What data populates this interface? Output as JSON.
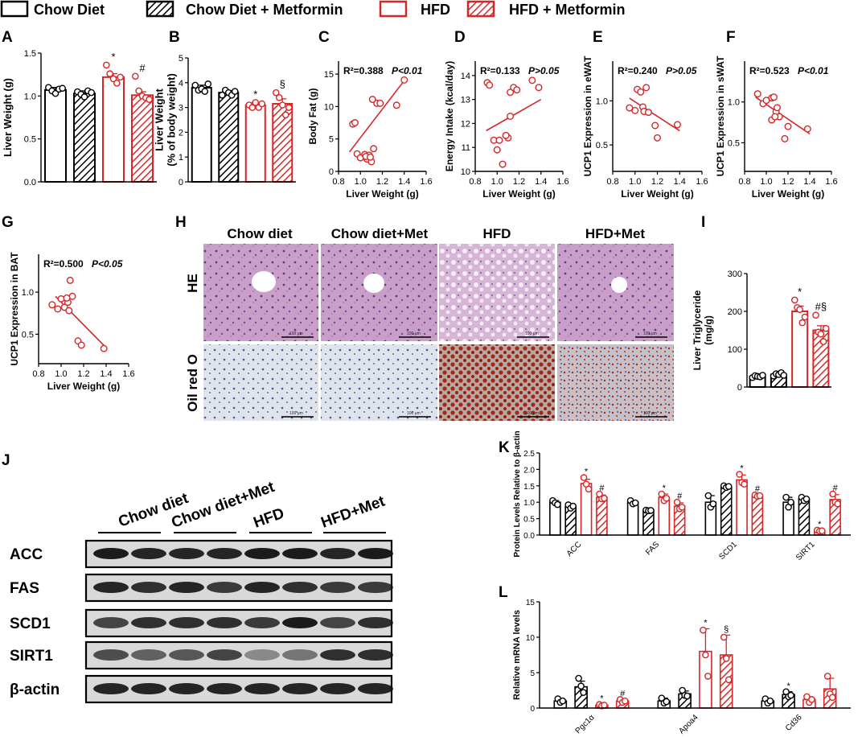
{
  "legend": [
    {
      "label": "Chow Diet",
      "color": "#000000",
      "hatched": false
    },
    {
      "label": "Chow Diet + Metformin",
      "color": "#000000",
      "hatched": true
    },
    {
      "label": "HFD",
      "color": "#d62728",
      "hatched": false
    },
    {
      "label": "HFD + Metformin",
      "color": "#d62728",
      "hatched": true
    }
  ],
  "colors": {
    "black": "#000000",
    "red": "#d62728"
  },
  "chart_data": [
    {
      "panel": "A",
      "type": "bar",
      "categories": [
        "Chow Diet",
        "Chow Diet + Metformin",
        "HFD",
        "HFD + Metformin"
      ],
      "values": [
        1.07,
        1.03,
        1.22,
        1.01
      ],
      "errors": [
        0.03,
        0.03,
        0.04,
        0.04
      ],
      "points": [
        [
          1.1,
          1.06,
          1.03,
          1.08,
          1.09
        ],
        [
          1.05,
          1.02,
          0.99,
          1.06,
          1.04
        ],
        [
          1.36,
          1.26,
          1.2,
          1.15,
          1.22
        ],
        [
          1.23,
          1.06,
          1.0,
          0.98,
          0.96
        ]
      ],
      "sig": [
        "",
        "",
        "*",
        "#"
      ],
      "ylabel": "Liver Weight (g)",
      "ylim": [
        0,
        1.5
      ],
      "yticks": [
        "0.0",
        "0.5",
        "1.0",
        "1.5"
      ],
      "ytickvals": [
        0,
        0.5,
        1.0,
        1.5
      ]
    },
    {
      "panel": "B",
      "type": "bar",
      "categories": [
        "Chow Diet",
        "Chow Diet + Metformin",
        "HFD",
        "HFD + Metformin"
      ],
      "values": [
        3.8,
        3.6,
        3.1,
        3.15
      ],
      "errors": [
        0.1,
        0.08,
        0.1,
        0.2
      ],
      "points": [
        [
          3.9,
          3.7,
          3.75,
          3.65,
          3.95
        ],
        [
          3.5,
          3.7,
          3.6,
          3.5,
          3.65
        ],
        [
          3.1,
          3.0,
          3.2,
          3.0,
          3.15
        ],
        [
          3.6,
          3.4,
          3.1,
          2.7,
          3.0
        ]
      ],
      "sig": [
        "",
        "",
        "*",
        "§"
      ],
      "ylabel": "Liver Weight (% of body weight)",
      "ylabel_lines": [
        "Liver Weight",
        "(% of body weight)"
      ],
      "ylim": [
        0,
        5
      ],
      "yticks": [
        "0",
        "1",
        "2",
        "3",
        "4",
        "5"
      ],
      "ytickvals": [
        0,
        1,
        2,
        3,
        4,
        5
      ]
    },
    {
      "panel": "C",
      "type": "scatter",
      "x": [
        0.93,
        0.95,
        0.97,
        1.0,
        1.04,
        1.06,
        1.08,
        1.1,
        1.12,
        1.15,
        1.18,
        1.05,
        1.09,
        1.11,
        1.33,
        1.4
      ],
      "y": [
        7.3,
        7.5,
        2.7,
        2.1,
        2.6,
        1.9,
        2.5,
        1.5,
        3.5,
        10.5,
        10.5,
        2.3,
        2.2,
        11.1,
        10.2,
        14.1
      ],
      "fit": [
        [
          0.9,
          3.0
        ],
        [
          1.4,
          14.0
        ]
      ],
      "annotation": "R²=0.388",
      "pvalue": "P<0.01",
      "xlabel": "Liver Weight (g)",
      "ylabel": "Body Fat (g)",
      "xlim": [
        0.8,
        1.6
      ],
      "ylim": [
        0,
        17
      ],
      "xticks": [
        "0.8",
        "1.0",
        "1.2",
        "1.4",
        "1.6"
      ],
      "xtickvals": [
        0.8,
        1.0,
        1.2,
        1.4,
        1.6
      ],
      "yticks": [
        "0",
        "5",
        "10",
        "15"
      ],
      "ytickvals": [
        0,
        5,
        10,
        15
      ]
    },
    {
      "panel": "D",
      "type": "scatter",
      "x": [
        0.91,
        0.93,
        0.97,
        1.0,
        1.02,
        1.05,
        1.08,
        1.1,
        1.12,
        1.15,
        1.18,
        1.08,
        1.12,
        1.32,
        1.38
      ],
      "y": [
        13.7,
        13.6,
        11.3,
        10.9,
        11.3,
        10.3,
        11.5,
        11.4,
        13.3,
        13.5,
        13.4,
        11.5,
        12.3,
        13.8,
        13.5
      ],
      "fit": [
        [
          0.9,
          11.7
        ],
        [
          1.4,
          13.0
        ]
      ],
      "annotation": "R²=0.133",
      "pvalue": "P>0.05",
      "xlabel": "Liver Weight (g)",
      "ylabel": "Energy Intake (kcal/day)",
      "xlim": [
        0.8,
        1.6
      ],
      "ylim": [
        10,
        14.6
      ],
      "xticks": [
        "0.8",
        "1.0",
        "1.2",
        "1.4",
        "1.6"
      ],
      "xtickvals": [
        0.8,
        1.0,
        1.2,
        1.4,
        1.6
      ],
      "yticks": [
        "10",
        "11",
        "12",
        "13",
        "14"
      ],
      "ytickvals": [
        10,
        11,
        12,
        13,
        14
      ]
    },
    {
      "panel": "E",
      "type": "scatter",
      "x": [
        0.95,
        1.0,
        1.02,
        1.05,
        1.07,
        1.1,
        1.08,
        1.12,
        1.18,
        1.2,
        1.38
      ],
      "y": [
        0.92,
        0.89,
        1.13,
        1.1,
        0.93,
        1.15,
        0.88,
        0.87,
        0.72,
        0.58,
        0.73
      ],
      "fit": [
        [
          0.95,
          1.03
        ],
        [
          1.4,
          0.66
        ]
      ],
      "annotation": "R²=0.240",
      "pvalue": "P>0.05",
      "xlabel": "Liver Weight (g)",
      "ylabel": "UCP1 Expression in eWAT",
      "xlim": [
        0.8,
        1.6
      ],
      "ylim": [
        0.2,
        1.45
      ],
      "xticks": [
        "0.8",
        "1.0",
        "1.2",
        "1.4",
        "1.6"
      ],
      "xtickvals": [
        0.8,
        1.0,
        1.2,
        1.4,
        1.6
      ],
      "yticks": [
        "0.5",
        "1.0"
      ],
      "ytickvals": [
        0.5,
        1.0
      ]
    },
    {
      "panel": "F",
      "type": "scatter",
      "x": [
        0.92,
        0.97,
        1.0,
        1.05,
        1.07,
        1.09,
        1.1,
        1.12,
        1.05,
        1.08,
        1.2,
        1.17,
        1.38
      ],
      "y": [
        1.1,
        0.98,
        1.02,
        1.05,
        1.06,
        0.88,
        0.93,
        0.82,
        0.78,
        0.82,
        0.7,
        0.55,
        0.67
      ],
      "fit": [
        [
          0.9,
          1.06
        ],
        [
          1.4,
          0.61
        ]
      ],
      "annotation": "R²=0.523",
      "pvalue": "P<0.01",
      "xlabel": "Liver Weight (g)",
      "ylabel": "UCP1 Expression in sWAT",
      "xlim": [
        0.8,
        1.6
      ],
      "ylim": [
        0.15,
        1.5
      ],
      "xticks": [
        "0.8",
        "1.0",
        "1.2",
        "1.4",
        "1.6"
      ],
      "xtickvals": [
        0.8,
        1.0,
        1.2,
        1.4,
        1.6
      ],
      "yticks": [
        "0.5",
        "1.0"
      ],
      "ytickvals": [
        0.5,
        1.0
      ]
    },
    {
      "panel": "G",
      "type": "scatter",
      "x": [
        0.92,
        0.97,
        1.0,
        1.03,
        1.06,
        1.08,
        1.1,
        1.05,
        1.07,
        1.15,
        1.18,
        1.38
      ],
      "y": [
        0.85,
        0.8,
        0.92,
        0.82,
        0.88,
        1.14,
        0.95,
        0.93,
        0.78,
        0.42,
        0.37,
        0.33
      ],
      "fit": [
        [
          0.95,
          0.95
        ],
        [
          1.4,
          0.34
        ]
      ],
      "annotation": "R²=0.500",
      "pvalue": "P<0.05",
      "xlabel": "Liver Weight (g)",
      "ylabel": "UCP1 Expression in BAT",
      "xlim": [
        0.8,
        1.6
      ],
      "ylim": [
        0.15,
        1.45
      ],
      "xticks": [
        "0.8",
        "1.0",
        "1.2",
        "1.4",
        "1.6"
      ],
      "xtickvals": [
        0.8,
        1.0,
        1.2,
        1.4,
        1.6
      ],
      "yticks": [
        "0.5",
        "1.0"
      ],
      "ytickvals": [
        0.5,
        1.0
      ]
    },
    {
      "panel": "I",
      "type": "bar",
      "categories": [
        "Chow Diet",
        "Chow Diet + Metformin",
        "HFD",
        "HFD + Metformin"
      ],
      "values": [
        28,
        33,
        200,
        150
      ],
      "errors": [
        3,
        4,
        14,
        12
      ],
      "points": [
        [
          25,
          30,
          28,
          27,
          31
        ],
        [
          29,
          35,
          33,
          38,
          31
        ],
        [
          230,
          210,
          205,
          170,
          185
        ],
        [
          190,
          145,
          140,
          120,
          155
        ]
      ],
      "sig": [
        "",
        "",
        "*",
        "#§"
      ],
      "ylabel": "Liver Triglyceride (mg/g)",
      "ylabel_lines": [
        "Liver Triglyceride",
        "(mg/g)"
      ],
      "ylim": [
        0,
        300
      ],
      "yticks": [
        "0",
        "100",
        "200",
        "300"
      ],
      "ytickvals": [
        0,
        100,
        200,
        300
      ]
    },
    {
      "panel": "K",
      "type": "bar",
      "categories": [
        "ACC",
        "FAS",
        "SCD1",
        "SIRT1"
      ],
      "series": [
        {
          "name": "Chow Diet",
          "values": [
            1.0,
            1.0,
            1.0,
            1.0
          ],
          "errors": [
            0.05,
            0.05,
            0.2,
            0.15
          ],
          "points": [
            [
              1.05,
              0.98,
              0.93
            ],
            [
              1.05,
              0.95,
              0.98
            ],
            [
              1.2,
              0.85,
              0.95
            ],
            [
              1.15,
              0.85,
              1.0
            ]
          ]
        },
        {
          "name": "Chow Diet + Metformin",
          "values": [
            0.87,
            0.75,
            1.48,
            1.1
          ],
          "errors": [
            0.05,
            0.02,
            0.03,
            0.07
          ],
          "points": [
            [
              0.92,
              0.82,
              0.88
            ],
            [
              0.76,
              0.74,
              0.75
            ],
            [
              1.5,
              1.45,
              1.48
            ],
            [
              1.15,
              1.05,
              1.1
            ]
          ]
        },
        {
          "name": "HFD",
          "values": [
            1.57,
            1.15,
            1.68,
            0.13
          ],
          "errors": [
            0.13,
            0.1,
            0.15,
            0.02
          ],
          "points": [
            [
              1.75,
              1.55,
              1.4
            ],
            [
              1.25,
              1.05,
              1.12
            ],
            [
              1.85,
              1.6,
              1.55
            ],
            [
              0.15,
              0.12,
              0.13
            ]
          ]
        },
        {
          "name": "HFD + Metformin",
          "values": [
            1.15,
            0.88,
            1.2,
            1.08
          ],
          "errors": [
            0.07,
            0.1,
            0.03,
            0.15
          ],
          "points": [
            [
              1.25,
              1.1,
              1.12
            ],
            [
              1.0,
              0.8,
              0.85
            ],
            [
              1.22,
              1.18,
              1.2
            ],
            [
              1.25,
              1.0,
              0.95
            ]
          ]
        }
      ],
      "sig": [
        [
          "",
          "",
          "*",
          "#"
        ],
        [
          "",
          "",
          "*",
          "#"
        ],
        [
          "",
          "",
          "*",
          "#"
        ],
        [
          "",
          "",
          "*",
          "#"
        ]
      ],
      "ylabel": "Protein Levels Relative to β-actin",
      "ylim": [
        0,
        2.5
      ],
      "yticks": [
        "0.0",
        "0.5",
        "1.0",
        "1.5",
        "2.0",
        "2.5"
      ],
      "ytickvals": [
        0,
        0.5,
        1.0,
        1.5,
        2.0,
        2.5
      ]
    },
    {
      "panel": "L",
      "type": "bar",
      "categories": [
        "Pgc1α",
        "Apoa4",
        "Cd36"
      ],
      "series": [
        {
          "name": "Chow Diet",
          "values": [
            1.0,
            1.0,
            1.0
          ],
          "errors": [
            0.3,
            0.4,
            0.3
          ],
          "points": [
            [
              1.3,
              0.8,
              1.0
            ],
            [
              1.4,
              0.7,
              0.9
            ],
            [
              1.3,
              0.7,
              1.0
            ]
          ]
        },
        {
          "name": "Chow Diet + Metformin",
          "values": [
            3.0,
            2.0,
            1.9
          ],
          "errors": [
            0.8,
            0.4,
            0.4
          ],
          "points": [
            [
              4.2,
              3.1,
              2.2
            ],
            [
              2.5,
              1.8,
              1.7
            ],
            [
              2.3,
              1.6,
              1.8
            ]
          ]
        },
        {
          "name": "HFD",
          "values": [
            0.4,
            8.0,
            1.2
          ],
          "errors": [
            0.1,
            3.2,
            0.4
          ],
          "points": [
            [
              0.5,
              0.3,
              0.4
            ],
            [
              11.0,
              7.5,
              4.5
            ],
            [
              1.6,
              0.8,
              1.2
            ]
          ]
        },
        {
          "name": "HFD + Metformin",
          "values": [
            1.0,
            7.5,
            2.7
          ],
          "errors": [
            0.2,
            2.8,
            1.5
          ],
          "points": [
            [
              1.2,
              0.8,
              1.0
            ],
            [
              10.0,
              7.0,
              4.0
            ],
            [
              4.5,
              2.0,
              1.5
            ]
          ]
        }
      ],
      "sig": [
        [
          "",
          "",
          "*",
          "#"
        ],
        [
          "",
          "",
          "*",
          "§"
        ],
        [
          "",
          "*",
          "",
          ""
        ]
      ],
      "ylabel": "Relative mRNA levels",
      "ylim": [
        0,
        15
      ],
      "yticks": [
        "0",
        "5",
        "10",
        "15"
      ],
      "ytickvals": [
        0,
        5,
        10,
        15
      ]
    }
  ],
  "histology": {
    "columns": [
      "Chow diet",
      "Chow diet+Met",
      "HFD",
      "HFD+Met"
    ],
    "rows": [
      "HE",
      "Oil red O"
    ],
    "scale_label": "100 μm"
  },
  "western_blot": {
    "groups": [
      "Chow diet",
      "Chow diet+Met",
      "HFD",
      "HFD+Met"
    ],
    "proteins": [
      "ACC",
      "FAS",
      "SCD1",
      "SIRT1",
      "β-actin"
    ],
    "band_intensity": [
      [
        0.95,
        0.9,
        0.9,
        0.9,
        0.95,
        0.95,
        0.9,
        0.95
      ],
      [
        0.9,
        0.85,
        0.9,
        0.8,
        0.9,
        0.85,
        0.8,
        0.8
      ],
      [
        0.75,
        0.85,
        0.85,
        0.85,
        0.8,
        0.95,
        0.75,
        0.85
      ],
      [
        0.7,
        0.6,
        0.65,
        0.75,
        0.4,
        0.5,
        0.85,
        0.85
      ],
      [
        0.9,
        0.9,
        0.9,
        0.9,
        0.9,
        0.9,
        0.9,
        0.9
      ]
    ]
  },
  "panel_letters": [
    "A",
    "B",
    "C",
    "D",
    "E",
    "F",
    "G",
    "H",
    "I",
    "J",
    "K",
    "L"
  ]
}
